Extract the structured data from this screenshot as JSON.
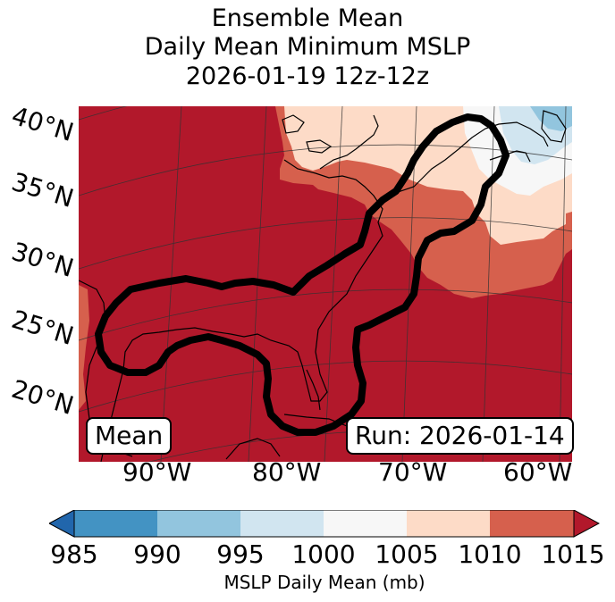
{
  "title": {
    "line1": "Ensemble Mean",
    "line2": "Daily Mean Minimum MSLP",
    "line3": "2026-01-19 12z-12z"
  },
  "map": {
    "lat_labels": [
      "40°N",
      "35°N",
      "30°N",
      "25°N",
      "20°N"
    ],
    "lon_labels": [
      "90°W",
      "80°W",
      "70°W",
      "60°W"
    ],
    "mean_label": "Mean",
    "run_label": "Run: 2026-01-14"
  },
  "colorbar": {
    "ticks": [
      "985",
      "990",
      "995",
      "1000",
      "1005",
      "1010",
      "1015"
    ],
    "label": "MSLP Daily Mean (mb)",
    "colors": [
      "#2166ac",
      "#4393c3",
      "#92c5de",
      "#d1e5f0",
      "#f7f7f7",
      "#fddbc7",
      "#d6604d",
      "#b2182b"
    ]
  }
}
